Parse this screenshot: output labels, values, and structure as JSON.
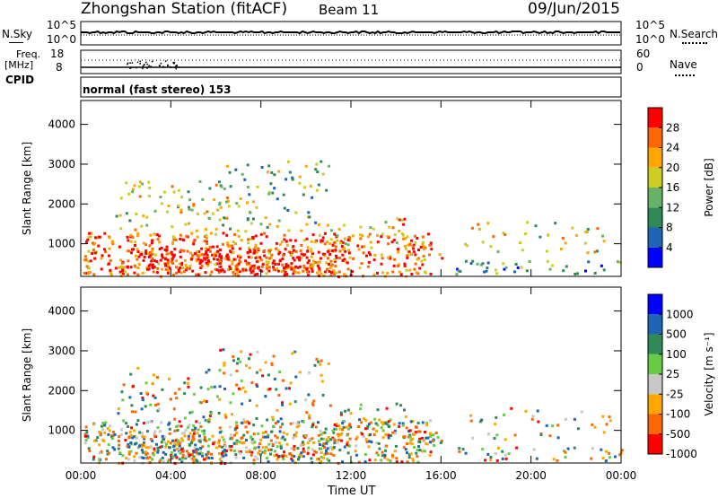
{
  "header": {
    "title": "Zhongshan Station (fitACF)",
    "beam": "Beam 11",
    "date": "09/Jun/2015"
  },
  "strip1": {
    "left_label": "N.Sky",
    "left_tick_top": "10^5",
    "left_tick_bottom": "10^0",
    "right_label": "N.Search",
    "right_tick_top": "10^5",
    "right_tick_bottom": "10^0"
  },
  "strip2": {
    "left_label_1": "Freq.",
    "left_label_2": "[MHz]",
    "left_tick_top": "18",
    "left_tick_bottom": "8",
    "right_label": "Nave",
    "right_tick_top": "60",
    "right_tick_bottom": "0"
  },
  "cpid": {
    "label": "CPID",
    "value": "normal (fast stereo) 153"
  },
  "x_axis_title": "Time UT",
  "colors": {
    "power": [
      "#0000ff",
      "#1e64b4",
      "#2e8b57",
      "#66b266",
      "#cccc22",
      "#ffa500",
      "#ff6600",
      "#ff0000"
    ],
    "velocity": [
      "#ff0000",
      "#ff6600",
      "#ffa500",
      "#c8c8c8",
      "#66cc44",
      "#2e8b57",
      "#1e64b4",
      "#0000ff"
    ]
  },
  "chart_data": [
    {
      "type": "heatmap",
      "title": "",
      "xlabel": "",
      "ylabel": "Slant Range [km]",
      "x_ticks": [
        "00:00",
        "04:00",
        "08:00",
        "12:00",
        "16:00",
        "20:00",
        "00:00"
      ],
      "y_ticks": [
        "1000",
        "2000",
        "3000",
        "4000"
      ],
      "ylim": [
        180,
        4600
      ],
      "colorbar": {
        "label": "Power [dB]",
        "ticks": [
          "4",
          "8",
          "12",
          "16",
          "20",
          "24",
          "28"
        ],
        "range": [
          0,
          32
        ]
      }
    },
    {
      "type": "heatmap",
      "title": "",
      "xlabel": "Time UT",
      "ylabel": "Slant Range [km]",
      "x_ticks": [
        "00:00",
        "04:00",
        "08:00",
        "12:00",
        "16:00",
        "20:00",
        "00:00"
      ],
      "y_ticks": [
        "1000",
        "2000",
        "3000",
        "4000"
      ],
      "ylim": [
        180,
        4600
      ],
      "colorbar": {
        "label": "Velocity [m s⁻¹]",
        "ticks": [
          "1000",
          "500",
          "100",
          "25",
          "-25",
          "-100",
          "-500",
          "-1000"
        ]
      }
    }
  ]
}
